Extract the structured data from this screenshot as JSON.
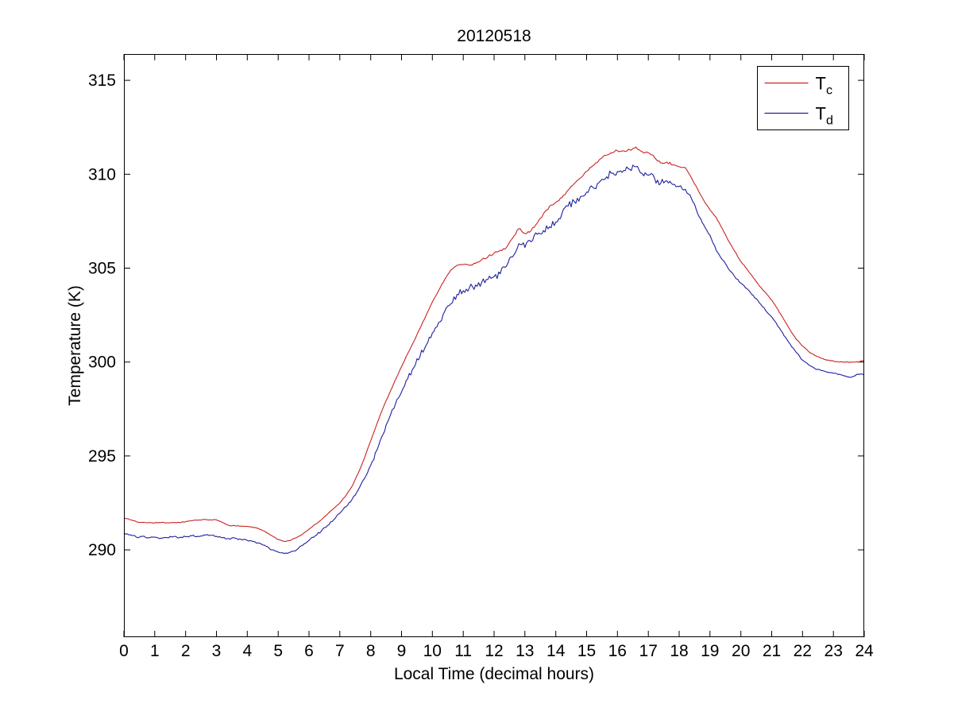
{
  "figure": {
    "background": "#ffffff"
  },
  "chart_data": {
    "type": "line",
    "title": "20120518",
    "xlabel": "Local Time (decimal hours)",
    "ylabel": "Temperature (K)",
    "xlim": [
      0,
      24
    ],
    "ylim": [
      285.35,
      316.4
    ],
    "xticks": [
      0,
      1,
      2,
      3,
      4,
      5,
      6,
      7,
      8,
      9,
      10,
      11,
      12,
      13,
      14,
      15,
      16,
      17,
      18,
      19,
      20,
      21,
      22,
      23,
      24
    ],
    "yticks": [
      290,
      295,
      300,
      305,
      310,
      315
    ],
    "grid": false,
    "legend_position": "upper right",
    "legend": [
      {
        "main": "T",
        "sub": "c",
        "series": "Tc"
      },
      {
        "main": "T",
        "sub": "d",
        "series": "Td"
      }
    ],
    "x": [
      0.0,
      0.2,
      0.4,
      0.6,
      0.8,
      1.0,
      1.2,
      1.4,
      1.6,
      1.8,
      2.0,
      2.2,
      2.4,
      2.6,
      2.8,
      3.0,
      3.2,
      3.4,
      3.6,
      3.8,
      4.0,
      4.2,
      4.4,
      4.6,
      4.8,
      5.0,
      5.2,
      5.4,
      5.6,
      5.8,
      6.0,
      6.2,
      6.4,
      6.6,
      6.8,
      7.0,
      7.2,
      7.4,
      7.6,
      7.8,
      8.0,
      8.2,
      8.4,
      8.6,
      8.8,
      9.0,
      9.2,
      9.4,
      9.6,
      9.8,
      10.0,
      10.2,
      10.4,
      10.6,
      10.8,
      11.0,
      11.2,
      11.4,
      11.6,
      11.8,
      12.0,
      12.2,
      12.4,
      12.6,
      12.8,
      13.0,
      13.2,
      13.4,
      13.6,
      13.8,
      14.0,
      14.2,
      14.4,
      14.6,
      14.8,
      15.0,
      15.2,
      15.4,
      15.6,
      15.8,
      16.0,
      16.2,
      16.4,
      16.6,
      16.8,
      17.0,
      17.2,
      17.4,
      17.6,
      17.8,
      18.0,
      18.2,
      18.4,
      18.6,
      18.8,
      19.0,
      19.2,
      19.4,
      19.6,
      19.8,
      20.0,
      20.2,
      20.4,
      20.6,
      20.8,
      21.0,
      21.2,
      21.4,
      21.6,
      21.8,
      22.0,
      22.2,
      22.4,
      22.6,
      22.8,
      23.0,
      23.2,
      23.4,
      23.6,
      23.8,
      24.0
    ],
    "series": [
      {
        "name": "Tc",
        "color": "#cc2222",
        "seed": 43.7,
        "noise": [
          {
            "t0": 0,
            "t1": 11,
            "amp": 0.02
          },
          {
            "t0": 11,
            "t1": 17.8,
            "amp": 0.06
          },
          {
            "t0": 17.8,
            "t1": 24,
            "amp": 0.02
          }
        ],
        "values": [
          291.7,
          291.6,
          291.5,
          291.46,
          291.45,
          291.44,
          291.45,
          291.44,
          291.45,
          291.46,
          291.5,
          291.55,
          291.58,
          291.62,
          291.6,
          291.6,
          291.45,
          291.3,
          291.28,
          291.26,
          291.25,
          291.2,
          291.1,
          290.95,
          290.75,
          290.55,
          290.45,
          290.5,
          290.65,
          290.85,
          291.1,
          291.35,
          291.6,
          291.9,
          292.2,
          292.5,
          292.9,
          293.4,
          294.1,
          294.9,
          295.8,
          296.7,
          297.55,
          298.3,
          299.05,
          299.75,
          300.45,
          301.1,
          301.8,
          302.5,
          303.2,
          303.8,
          304.4,
          304.9,
          305.15,
          305.2,
          305.15,
          305.25,
          305.45,
          305.6,
          305.8,
          305.95,
          306.1,
          306.6,
          307.1,
          306.85,
          307.0,
          307.4,
          307.9,
          308.3,
          308.5,
          308.75,
          309.15,
          309.5,
          309.8,
          310.15,
          310.45,
          310.75,
          311.0,
          311.15,
          311.25,
          311.25,
          311.3,
          311.45,
          311.2,
          311.15,
          310.9,
          310.6,
          310.65,
          310.5,
          310.4,
          310.35,
          309.8,
          309.2,
          308.6,
          308.1,
          307.7,
          307.1,
          306.45,
          305.9,
          305.35,
          304.95,
          304.5,
          304.05,
          303.7,
          303.3,
          302.8,
          302.25,
          301.7,
          301.2,
          300.85,
          300.55,
          300.35,
          300.2,
          300.1,
          300.05,
          300.0,
          300.0,
          300.0,
          300.0,
          300.1
        ]
      },
      {
        "name": "Td",
        "color": "#1f1f9e",
        "seed": 91.3,
        "noise": [
          {
            "t0": 0,
            "t1": 8,
            "amp": 0.045
          },
          {
            "t0": 8,
            "t1": 9.2,
            "amp": 0.12
          },
          {
            "t0": 9.2,
            "t1": 17.6,
            "amp": 0.2
          },
          {
            "t0": 17.6,
            "t1": 18.6,
            "amp": 0.1
          },
          {
            "t0": 18.6,
            "t1": 22,
            "amp": 0.05
          },
          {
            "t0": 22,
            "t1": 24,
            "amp": 0.03
          }
        ],
        "values": [
          290.9,
          290.8,
          290.68,
          290.72,
          290.65,
          290.68,
          290.62,
          290.65,
          290.7,
          290.65,
          290.7,
          290.75,
          290.72,
          290.8,
          290.78,
          290.72,
          290.65,
          290.6,
          290.62,
          290.55,
          290.5,
          290.45,
          290.35,
          290.2,
          290.0,
          289.88,
          289.8,
          289.88,
          290.0,
          290.25,
          290.5,
          290.75,
          291.0,
          291.3,
          291.6,
          291.95,
          292.3,
          292.7,
          293.2,
          293.8,
          294.5,
          295.3,
          296.15,
          297.0,
          297.75,
          298.4,
          299.1,
          299.7,
          300.3,
          300.9,
          301.55,
          302.1,
          302.7,
          303.1,
          303.6,
          303.8,
          303.95,
          304.1,
          304.25,
          304.4,
          304.55,
          304.7,
          305.1,
          305.6,
          306.3,
          306.1,
          306.4,
          306.8,
          307.0,
          307.2,
          307.45,
          307.9,
          308.3,
          308.55,
          308.8,
          309.05,
          309.3,
          309.55,
          309.75,
          310.05,
          310.15,
          310.2,
          310.25,
          310.4,
          310.05,
          309.95,
          309.8,
          309.5,
          309.65,
          309.45,
          309.35,
          309.2,
          308.7,
          307.9,
          307.3,
          306.75,
          305.95,
          305.45,
          304.95,
          304.55,
          304.2,
          303.9,
          303.55,
          303.15,
          302.75,
          302.4,
          301.9,
          301.4,
          300.95,
          300.5,
          300.1,
          299.85,
          299.65,
          299.55,
          299.45,
          299.4,
          299.35,
          299.25,
          299.2,
          299.35,
          299.35
        ]
      }
    ]
  }
}
